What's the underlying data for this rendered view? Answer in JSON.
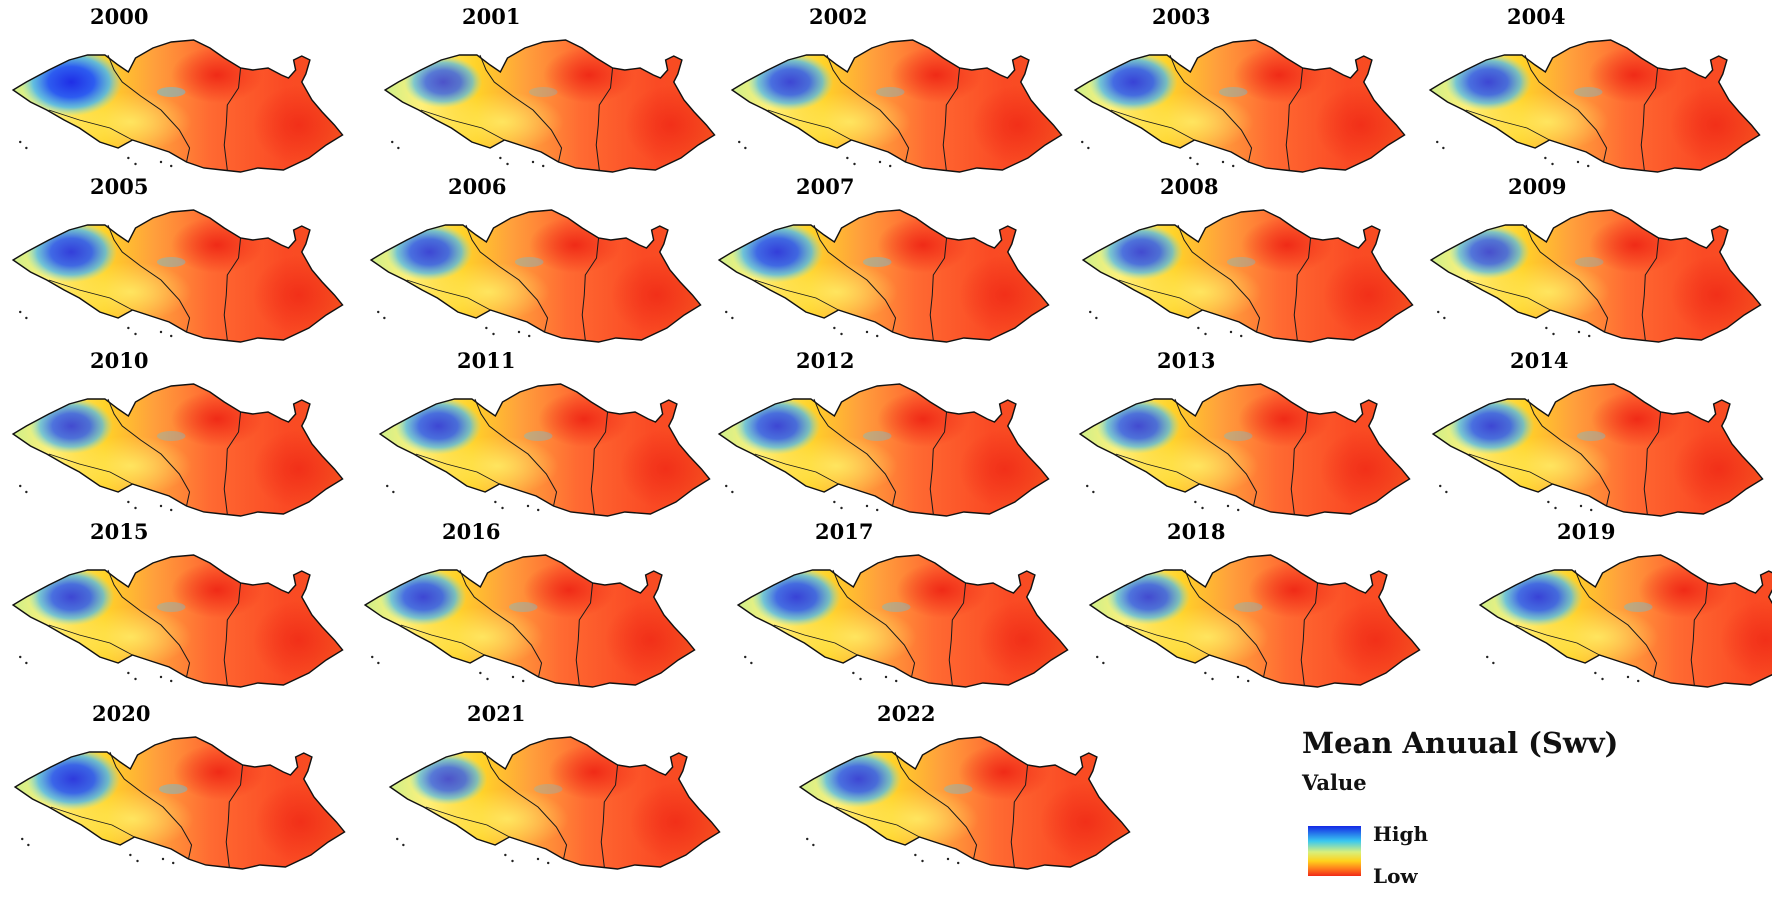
{
  "figure": {
    "panels": [
      {
        "year": "2000",
        "wetness": 1.0
      },
      {
        "year": "2001",
        "wetness": 0.55
      },
      {
        "year": "2002",
        "wetness": 0.7
      },
      {
        "year": "2003",
        "wetness": 0.75
      },
      {
        "year": "2004",
        "wetness": 0.7
      },
      {
        "year": "2005",
        "wetness": 0.8
      },
      {
        "year": "2006",
        "wetness": 0.7
      },
      {
        "year": "2007",
        "wetness": 0.8
      },
      {
        "year": "2008",
        "wetness": 0.65
      },
      {
        "year": "2009",
        "wetness": 0.6
      },
      {
        "year": "2010",
        "wetness": 0.65
      },
      {
        "year": "2011",
        "wetness": 0.7
      },
      {
        "year": "2012",
        "wetness": 0.7
      },
      {
        "year": "2013",
        "wetness": 0.65
      },
      {
        "year": "2014",
        "wetness": 0.7
      },
      {
        "year": "2015",
        "wetness": 0.7
      },
      {
        "year": "2016",
        "wetness": 0.7
      },
      {
        "year": "2017",
        "wetness": 0.75
      },
      {
        "year": "2018",
        "wetness": 0.65
      },
      {
        "year": "2019",
        "wetness": 0.75
      },
      {
        "year": "2020",
        "wetness": 0.85
      },
      {
        "year": "2021",
        "wetness": 0.55
      },
      {
        "year": "2022",
        "wetness": 0.7
      }
    ]
  },
  "legend": {
    "title": "Mean Anuual (Swv)",
    "subtitle": "Value",
    "high_label": "High",
    "low_label": "Low",
    "ramp_colors": [
      "#1428e6",
      "#39c8f0",
      "#d8f07c",
      "#ffd21c",
      "#ff7a1c",
      "#f02818"
    ]
  }
}
